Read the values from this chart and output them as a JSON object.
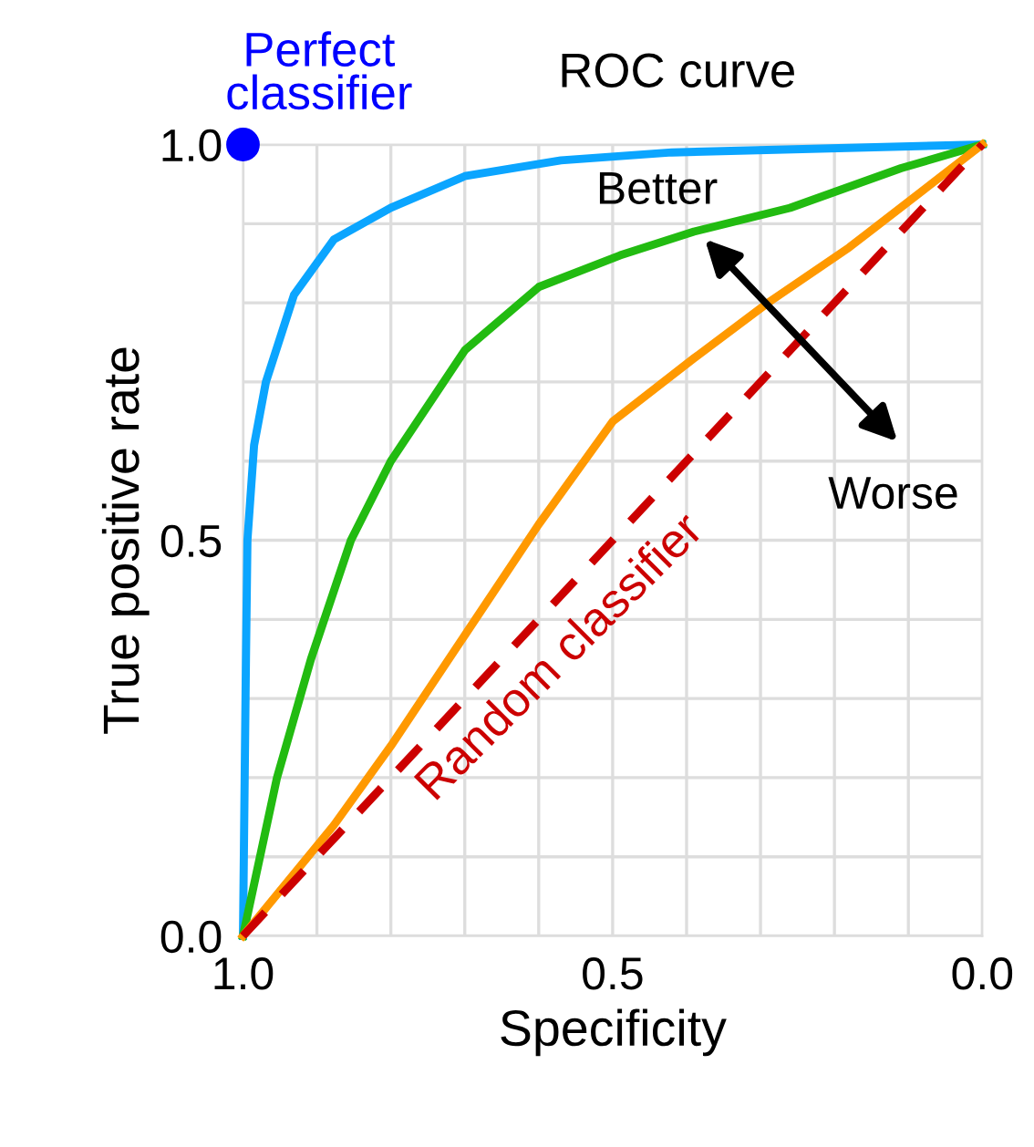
{
  "chart_data": {
    "type": "line",
    "title": "ROC curve",
    "xlabel": "Specificity",
    "ylabel": "True positive rate",
    "annotations": [
      "Better",
      "Worse"
    ],
    "series": [
      {
        "color": "#0ba5ff",
        "x": [
          1.0,
          0.996,
          0.994,
          0.985,
          0.969,
          0.931,
          0.877,
          0.8,
          0.7,
          0.57,
          0.42,
          0.0
        ],
        "values": [
          0.0,
          0.35,
          0.5,
          0.62,
          0.7,
          0.81,
          0.88,
          0.92,
          0.96,
          0.98,
          0.99,
          1.0
        ]
      },
      {
        "color": "#22bb11",
        "x": [
          1.0,
          0.954,
          0.908,
          0.854,
          0.8,
          0.7,
          0.6,
          0.49,
          0.39,
          0.26,
          0.11,
          0.0
        ],
        "values": [
          0.0,
          0.2,
          0.35,
          0.5,
          0.6,
          0.74,
          0.82,
          0.86,
          0.89,
          0.92,
          0.97,
          1.0
        ]
      },
      {
        "color": "#ff9900",
        "x": [
          1.0,
          0.877,
          0.8,
          0.7,
          0.6,
          0.5,
          0.39,
          0.29,
          0.18,
          0.0
        ],
        "values": [
          0.0,
          0.14,
          0.24,
          0.38,
          0.52,
          0.65,
          0.73,
          0.8,
          0.87,
          1.0
        ]
      },
      {
        "name": "Random classifier",
        "color": "#cc0000",
        "line_style": "dashed",
        "x": [
          1.0,
          0.0
        ],
        "values": [
          0.0,
          1.0
        ]
      },
      {
        "type": "scatter",
        "name": "Perfect classifier",
        "color": "#0000ff",
        "marker": "circle",
        "x": [
          1.0
        ],
        "values": [
          1.0
        ]
      }
    ],
    "xlim": [
      1.0,
      0.0
    ],
    "ylim": [
      0.0,
      1.0
    ],
    "xticks": [
      {
        "value": 1.0,
        "label": "1.0"
      },
      {
        "value": 0.9,
        "label": null
      },
      {
        "value": 0.8,
        "label": null
      },
      {
        "value": 0.7,
        "label": null
      },
      {
        "value": 0.6,
        "label": null
      },
      0.5,
      {
        "value": 0.4,
        "label": null
      },
      {
        "value": 0.3,
        "label": null
      },
      {
        "value": 0.2,
        "label": null
      },
      {
        "value": 0.1,
        "label": null
      },
      {
        "value": 0.0,
        "label": "0.0"
      }
    ],
    "yticks": [
      {
        "value": 0.0,
        "label": "0.0"
      },
      {
        "value": 0.1,
        "label": null
      },
      {
        "value": 0.2,
        "label": null
      },
      {
        "value": 0.3,
        "label": null
      },
      {
        "value": 0.4,
        "label": null
      },
      0.5,
      {
        "value": 0.6,
        "label": null
      },
      {
        "value": 0.7,
        "label": null
      },
      {
        "value": 0.8,
        "label": null
      },
      {
        "value": 0.9,
        "label": null
      },
      {
        "value": 1.0,
        "label": "1.0"
      }
    ],
    "grid": true,
    "legend": false
  }
}
